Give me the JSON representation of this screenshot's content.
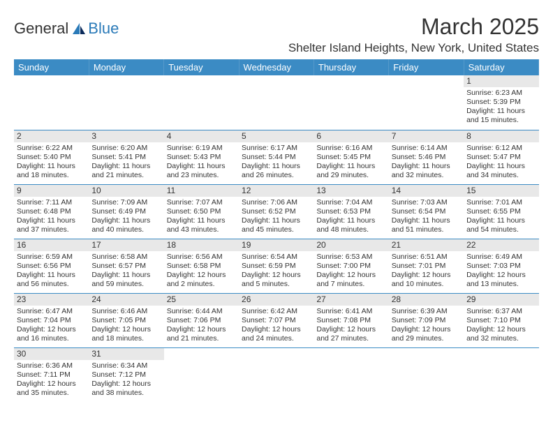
{
  "logo": {
    "name": "General",
    "brand": "Blue"
  },
  "title": "March 2025",
  "location": "Shelter Island Heights, New York, United States",
  "colors": {
    "header_bg": "#3b8bc4",
    "header_text": "#ffffff",
    "daynum_bg": "#e8e8e8",
    "border": "#3b8bc4",
    "text": "#333333",
    "page_bg": "#ffffff"
  },
  "day_headers": [
    "Sunday",
    "Monday",
    "Tuesday",
    "Wednesday",
    "Thursday",
    "Friday",
    "Saturday"
  ],
  "weeks": [
    [
      null,
      null,
      null,
      null,
      null,
      null,
      {
        "n": "1",
        "sr": "Sunrise: 6:23 AM",
        "ss": "Sunset: 5:39 PM",
        "dl1": "Daylight: 11 hours",
        "dl2": "and 15 minutes."
      }
    ],
    [
      {
        "n": "2",
        "sr": "Sunrise: 6:22 AM",
        "ss": "Sunset: 5:40 PM",
        "dl1": "Daylight: 11 hours",
        "dl2": "and 18 minutes."
      },
      {
        "n": "3",
        "sr": "Sunrise: 6:20 AM",
        "ss": "Sunset: 5:41 PM",
        "dl1": "Daylight: 11 hours",
        "dl2": "and 21 minutes."
      },
      {
        "n": "4",
        "sr": "Sunrise: 6:19 AM",
        "ss": "Sunset: 5:43 PM",
        "dl1": "Daylight: 11 hours",
        "dl2": "and 23 minutes."
      },
      {
        "n": "5",
        "sr": "Sunrise: 6:17 AM",
        "ss": "Sunset: 5:44 PM",
        "dl1": "Daylight: 11 hours",
        "dl2": "and 26 minutes."
      },
      {
        "n": "6",
        "sr": "Sunrise: 6:16 AM",
        "ss": "Sunset: 5:45 PM",
        "dl1": "Daylight: 11 hours",
        "dl2": "and 29 minutes."
      },
      {
        "n": "7",
        "sr": "Sunrise: 6:14 AM",
        "ss": "Sunset: 5:46 PM",
        "dl1": "Daylight: 11 hours",
        "dl2": "and 32 minutes."
      },
      {
        "n": "8",
        "sr": "Sunrise: 6:12 AM",
        "ss": "Sunset: 5:47 PM",
        "dl1": "Daylight: 11 hours",
        "dl2": "and 34 minutes."
      }
    ],
    [
      {
        "n": "9",
        "sr": "Sunrise: 7:11 AM",
        "ss": "Sunset: 6:48 PM",
        "dl1": "Daylight: 11 hours",
        "dl2": "and 37 minutes."
      },
      {
        "n": "10",
        "sr": "Sunrise: 7:09 AM",
        "ss": "Sunset: 6:49 PM",
        "dl1": "Daylight: 11 hours",
        "dl2": "and 40 minutes."
      },
      {
        "n": "11",
        "sr": "Sunrise: 7:07 AM",
        "ss": "Sunset: 6:50 PM",
        "dl1": "Daylight: 11 hours",
        "dl2": "and 43 minutes."
      },
      {
        "n": "12",
        "sr": "Sunrise: 7:06 AM",
        "ss": "Sunset: 6:52 PM",
        "dl1": "Daylight: 11 hours",
        "dl2": "and 45 minutes."
      },
      {
        "n": "13",
        "sr": "Sunrise: 7:04 AM",
        "ss": "Sunset: 6:53 PM",
        "dl1": "Daylight: 11 hours",
        "dl2": "and 48 minutes."
      },
      {
        "n": "14",
        "sr": "Sunrise: 7:03 AM",
        "ss": "Sunset: 6:54 PM",
        "dl1": "Daylight: 11 hours",
        "dl2": "and 51 minutes."
      },
      {
        "n": "15",
        "sr": "Sunrise: 7:01 AM",
        "ss": "Sunset: 6:55 PM",
        "dl1": "Daylight: 11 hours",
        "dl2": "and 54 minutes."
      }
    ],
    [
      {
        "n": "16",
        "sr": "Sunrise: 6:59 AM",
        "ss": "Sunset: 6:56 PM",
        "dl1": "Daylight: 11 hours",
        "dl2": "and 56 minutes."
      },
      {
        "n": "17",
        "sr": "Sunrise: 6:58 AM",
        "ss": "Sunset: 6:57 PM",
        "dl1": "Daylight: 11 hours",
        "dl2": "and 59 minutes."
      },
      {
        "n": "18",
        "sr": "Sunrise: 6:56 AM",
        "ss": "Sunset: 6:58 PM",
        "dl1": "Daylight: 12 hours",
        "dl2": "and 2 minutes."
      },
      {
        "n": "19",
        "sr": "Sunrise: 6:54 AM",
        "ss": "Sunset: 6:59 PM",
        "dl1": "Daylight: 12 hours",
        "dl2": "and 5 minutes."
      },
      {
        "n": "20",
        "sr": "Sunrise: 6:53 AM",
        "ss": "Sunset: 7:00 PM",
        "dl1": "Daylight: 12 hours",
        "dl2": "and 7 minutes."
      },
      {
        "n": "21",
        "sr": "Sunrise: 6:51 AM",
        "ss": "Sunset: 7:01 PM",
        "dl1": "Daylight: 12 hours",
        "dl2": "and 10 minutes."
      },
      {
        "n": "22",
        "sr": "Sunrise: 6:49 AM",
        "ss": "Sunset: 7:03 PM",
        "dl1": "Daylight: 12 hours",
        "dl2": "and 13 minutes."
      }
    ],
    [
      {
        "n": "23",
        "sr": "Sunrise: 6:47 AM",
        "ss": "Sunset: 7:04 PM",
        "dl1": "Daylight: 12 hours",
        "dl2": "and 16 minutes."
      },
      {
        "n": "24",
        "sr": "Sunrise: 6:46 AM",
        "ss": "Sunset: 7:05 PM",
        "dl1": "Daylight: 12 hours",
        "dl2": "and 18 minutes."
      },
      {
        "n": "25",
        "sr": "Sunrise: 6:44 AM",
        "ss": "Sunset: 7:06 PM",
        "dl1": "Daylight: 12 hours",
        "dl2": "and 21 minutes."
      },
      {
        "n": "26",
        "sr": "Sunrise: 6:42 AM",
        "ss": "Sunset: 7:07 PM",
        "dl1": "Daylight: 12 hours",
        "dl2": "and 24 minutes."
      },
      {
        "n": "27",
        "sr": "Sunrise: 6:41 AM",
        "ss": "Sunset: 7:08 PM",
        "dl1": "Daylight: 12 hours",
        "dl2": "and 27 minutes."
      },
      {
        "n": "28",
        "sr": "Sunrise: 6:39 AM",
        "ss": "Sunset: 7:09 PM",
        "dl1": "Daylight: 12 hours",
        "dl2": "and 29 minutes."
      },
      {
        "n": "29",
        "sr": "Sunrise: 6:37 AM",
        "ss": "Sunset: 7:10 PM",
        "dl1": "Daylight: 12 hours",
        "dl2": "and 32 minutes."
      }
    ],
    [
      {
        "n": "30",
        "sr": "Sunrise: 6:36 AM",
        "ss": "Sunset: 7:11 PM",
        "dl1": "Daylight: 12 hours",
        "dl2": "and 35 minutes."
      },
      {
        "n": "31",
        "sr": "Sunrise: 6:34 AM",
        "ss": "Sunset: 7:12 PM",
        "dl1": "Daylight: 12 hours",
        "dl2": "and 38 minutes."
      },
      null,
      null,
      null,
      null,
      null
    ]
  ]
}
